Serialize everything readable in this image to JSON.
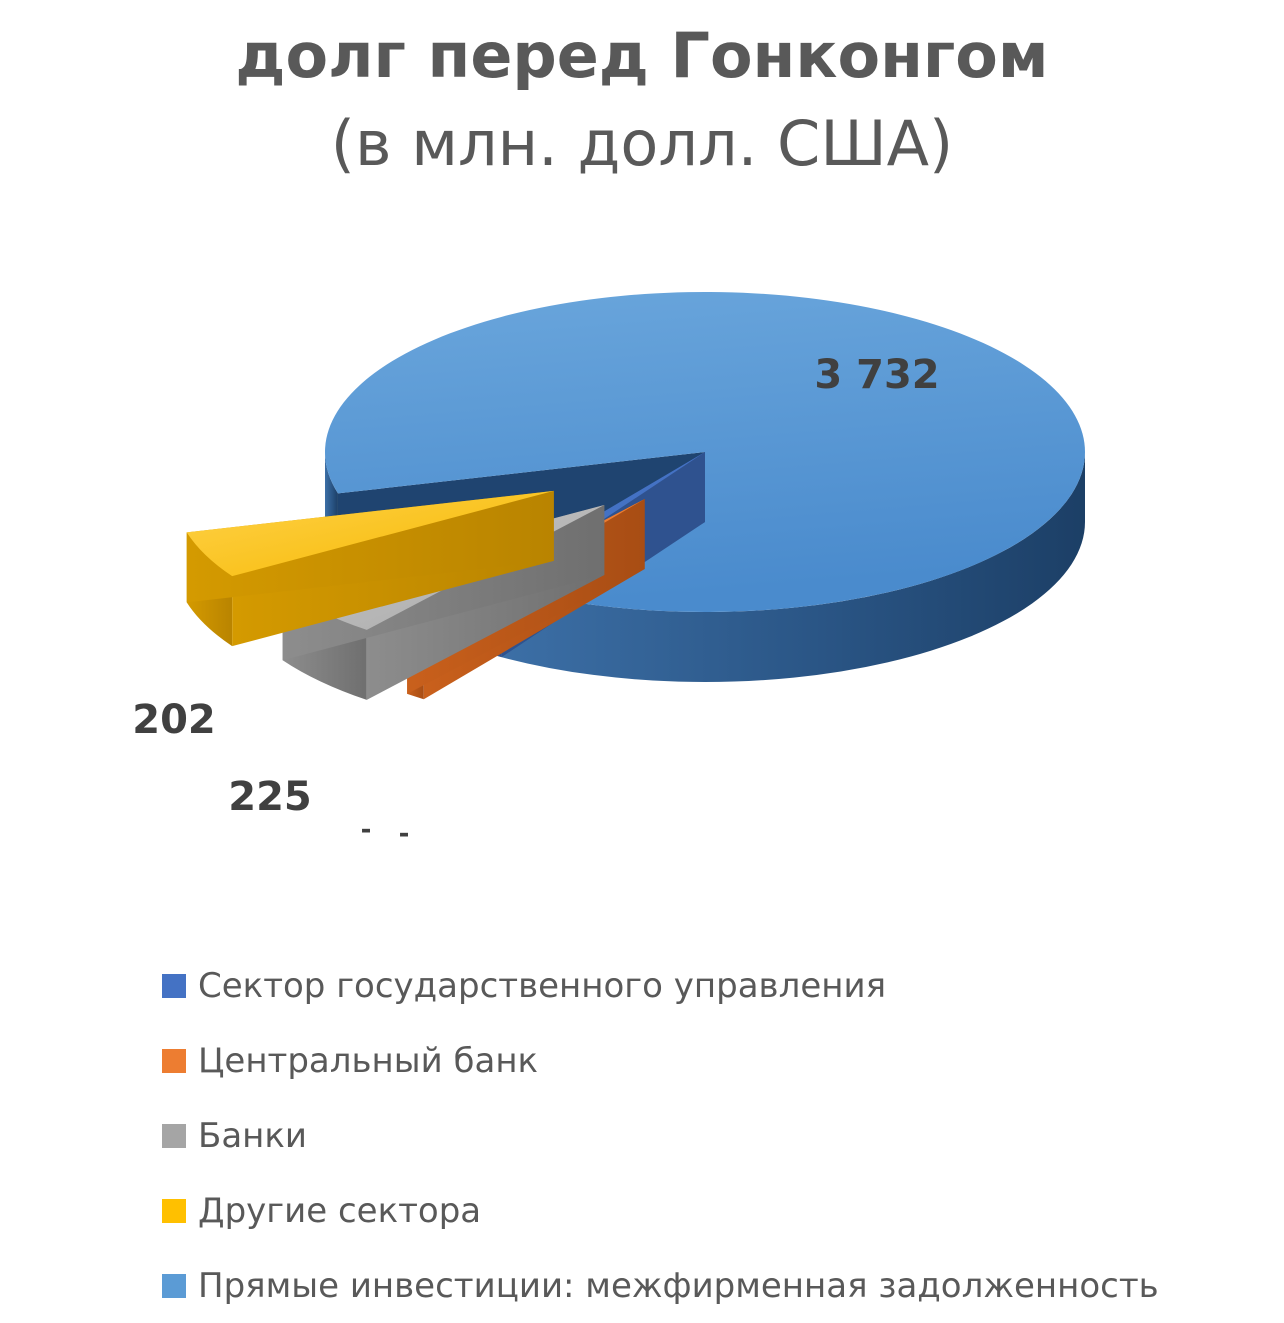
{
  "chart_data": {
    "type": "pie",
    "title": "долг перед Гонконгом",
    "subtitle": "(в млн. долл. США)",
    "series": [
      {
        "name": "Сектор государственного управления",
        "value": 0,
        "label": "-",
        "color": "#4472c4"
      },
      {
        "name": "Центральный банк",
        "value": 0,
        "label": "-",
        "color": "#ed7d31"
      },
      {
        "name": "Банки",
        "value": 225,
        "label": "225",
        "color": "#a5a5a5"
      },
      {
        "name": "Другие сектора",
        "value": 202,
        "label": "202",
        "color": "#ffc000"
      },
      {
        "name": "Прямые инвестиции: межфирменная задолженность",
        "value": 3732,
        "label": "3 732",
        "color": "#5b9bd5"
      }
    ],
    "legend_position": "bottom",
    "style": "3d-exploded"
  }
}
